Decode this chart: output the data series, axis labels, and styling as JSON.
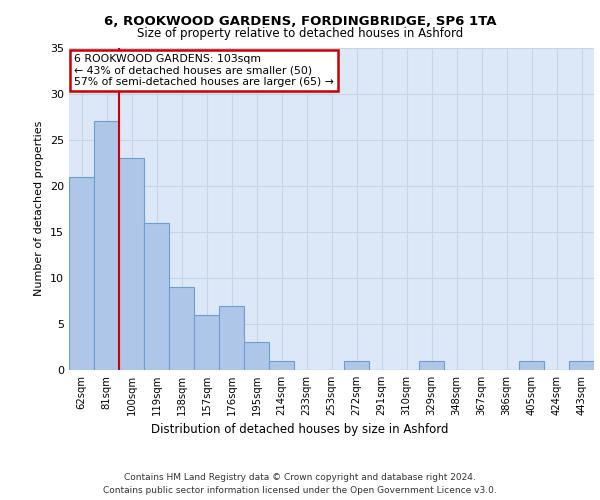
{
  "title1": "6, ROOKWOOD GARDENS, FORDINGBRIDGE, SP6 1TA",
  "title2": "Size of property relative to detached houses in Ashford",
  "xlabel": "Distribution of detached houses by size in Ashford",
  "ylabel": "Number of detached properties",
  "categories": [
    "62sqm",
    "81sqm",
    "100sqm",
    "119sqm",
    "138sqm",
    "157sqm",
    "176sqm",
    "195sqm",
    "214sqm",
    "233sqm",
    "253sqm",
    "272sqm",
    "291sqm",
    "310sqm",
    "329sqm",
    "348sqm",
    "367sqm",
    "386sqm",
    "405sqm",
    "424sqm",
    "443sqm"
  ],
  "values": [
    21,
    27,
    23,
    16,
    9,
    6,
    7,
    3,
    1,
    0,
    0,
    1,
    0,
    0,
    1,
    0,
    0,
    0,
    1,
    0,
    1
  ],
  "bar_color": "#aec6e8",
  "bar_edge_color": "#6b9fd4",
  "reference_line_x": 2,
  "annotation_text": "6 ROOKWOOD GARDENS: 103sqm\n← 43% of detached houses are smaller (50)\n57% of semi-detached houses are larger (65) →",
  "annotation_box_color": "#ffffff",
  "annotation_box_edge_color": "#cc0000",
  "grid_color": "#c8d4e8",
  "background_color": "#dce8f8",
  "ylim": [
    0,
    35
  ],
  "yticks": [
    0,
    5,
    10,
    15,
    20,
    25,
    30,
    35
  ],
  "footer1": "Contains HM Land Registry data © Crown copyright and database right 2024.",
  "footer2": "Contains public sector information licensed under the Open Government Licence v3.0."
}
